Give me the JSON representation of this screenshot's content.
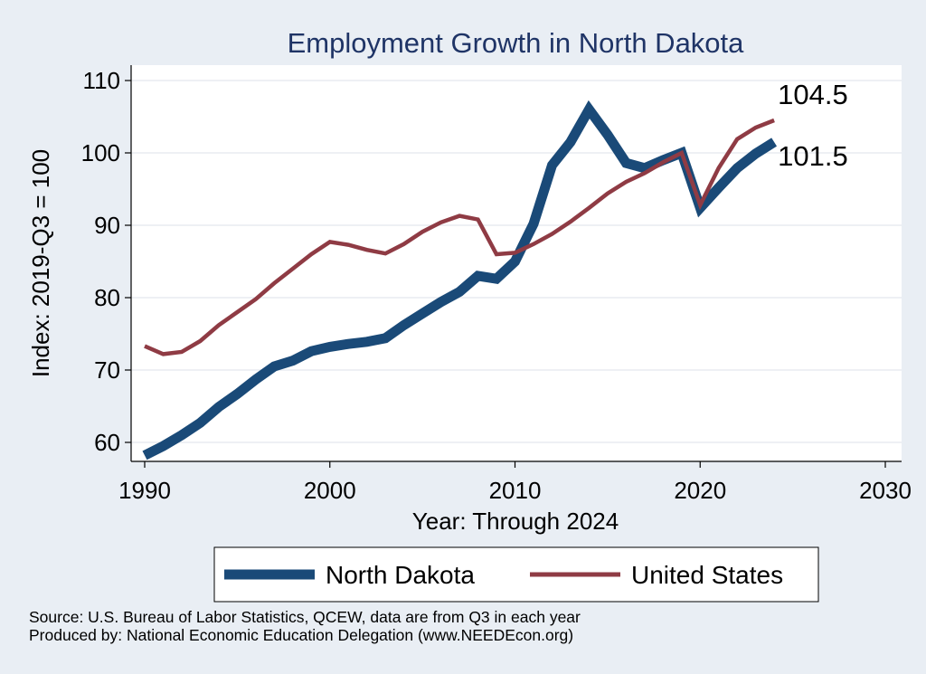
{
  "chart_data": {
    "type": "line",
    "title": "Employment Growth in North Dakota",
    "xlabel": "Year: Through 2024",
    "ylabel": "Index: 2019-Q3 = 100",
    "xlim": [
      1990,
      2030
    ],
    "ylim": [
      57,
      111
    ],
    "xticks": [
      1990,
      2000,
      2010,
      2020,
      2030
    ],
    "yticks": [
      60,
      70,
      80,
      90,
      100,
      110
    ],
    "grid": true,
    "legend": "bottom",
    "x": [
      1990,
      1991,
      1992,
      1993,
      1994,
      1995,
      1996,
      1997,
      1998,
      1999,
      2000,
      2001,
      2002,
      2003,
      2004,
      2005,
      2006,
      2007,
      2008,
      2009,
      2010,
      2011,
      2012,
      2013,
      2014,
      2015,
      2016,
      2017,
      2018,
      2019,
      2020,
      2021,
      2022,
      2023,
      2024
    ],
    "series": [
      {
        "name": "North Dakota",
        "color": "#1a4a78",
        "values": [
          58.2,
          59.5,
          61.0,
          62.7,
          64.9,
          66.7,
          68.7,
          70.5,
          71.3,
          72.6,
          73.2,
          73.6,
          73.9,
          74.4,
          76.2,
          77.8,
          79.4,
          80.8,
          83.0,
          82.6,
          85.0,
          90.2,
          98.3,
          101.5,
          106.0,
          102.5,
          98.6,
          97.9,
          99.0,
          100.0,
          92.4,
          95.2,
          97.9,
          99.9,
          101.5
        ],
        "end_label": "101.5"
      },
      {
        "name": "United States",
        "color": "#8f3b44",
        "values": [
          73.3,
          72.2,
          72.5,
          74.0,
          76.2,
          78.0,
          79.8,
          82.0,
          84.0,
          86.0,
          87.7,
          87.3,
          86.6,
          86.1,
          87.4,
          89.1,
          90.4,
          91.3,
          90.8,
          86.0,
          86.2,
          87.4,
          88.8,
          90.5,
          92.4,
          94.4,
          96.0,
          97.2,
          98.7,
          100.0,
          92.8,
          97.9,
          101.9,
          103.5,
          104.5
        ],
        "end_label": "104.5"
      }
    ]
  },
  "footer": {
    "source": "Source: U.S. Bureau of Labor Statistics, QCEW, data are from Q3 in each year",
    "producer": "Produced by: National Economic Education Delegation (www.NEEDEcon.org)"
  }
}
